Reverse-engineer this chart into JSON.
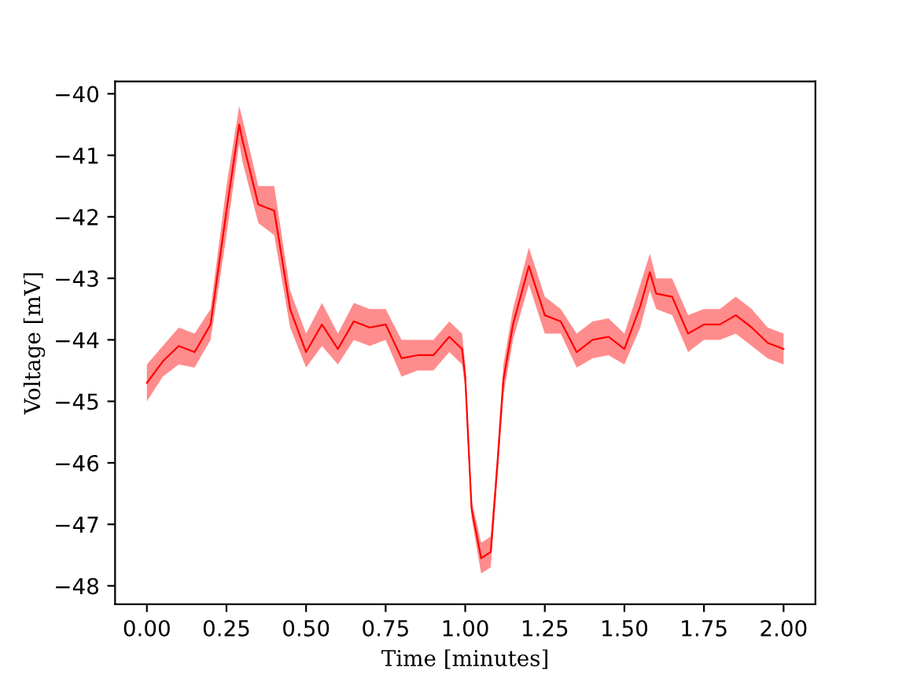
{
  "chart_data": {
    "type": "line",
    "xlabel": "Time [minutes]",
    "ylabel": "Voltage [mV]",
    "xlim": [
      -0.1,
      2.1
    ],
    "xticks": [
      {
        "value": 0,
        "label": "0.00"
      },
      {
        "value": 0.25,
        "label": "0.25"
      },
      {
        "value": 0.5,
        "label": "0.50"
      },
      {
        "value": 0.75,
        "label": "0.75"
      },
      {
        "value": 1,
        "label": "1.00"
      },
      {
        "value": 1.25,
        "label": "1.25"
      },
      {
        "value": 1.5,
        "label": "1.50"
      },
      {
        "value": 1.75,
        "label": "1.75"
      },
      {
        "value": 2,
        "label": "2.00"
      }
    ],
    "ylim": [
      -48.3,
      -39.8
    ],
    "yticks": [
      {
        "value": -48,
        "label": "−48"
      },
      {
        "value": -47,
        "label": "−47"
      },
      {
        "value": -46,
        "label": "−46"
      },
      {
        "value": -45,
        "label": "−45"
      },
      {
        "value": -44,
        "label": "−44"
      },
      {
        "value": -43,
        "label": "−43"
      },
      {
        "value": -42,
        "label": "−42"
      },
      {
        "value": -41,
        "label": "−41"
      },
      {
        "value": -40,
        "label": "−40"
      }
    ],
    "grid": false,
    "series": [
      {
        "color": "#ff0000",
        "x": [
          0,
          0.05,
          0.1,
          0.15,
          0.2,
          0.25,
          0.29,
          0.3,
          0.35,
          0.4,
          0.45,
          0.5,
          0.55,
          0.6,
          0.65,
          0.7,
          0.75,
          0.8,
          0.85,
          0.9,
          0.95,
          0.99,
          1.0,
          1.02,
          1.05,
          1.08,
          1.1,
          1.12,
          1.15,
          1.2,
          1.25,
          1.3,
          1.35,
          1.4,
          1.45,
          1.5,
          1.55,
          1.58,
          1.6,
          1.65,
          1.7,
          1.75,
          1.8,
          1.85,
          1.9,
          1.95,
          2.0
        ],
        "values": [
          -44.7,
          -44.35,
          -44.1,
          -44.2,
          -43.75,
          -41.9,
          -40.5,
          -40.75,
          -41.8,
          -41.9,
          -43.5,
          -44.2,
          -43.75,
          -44.15,
          -43.7,
          -43.8,
          -43.75,
          -44.3,
          -44.25,
          -44.25,
          -43.95,
          -44.15,
          -44.6,
          -46.75,
          -47.55,
          -47.45,
          -46.1,
          -44.65,
          -43.75,
          -42.8,
          -43.6,
          -43.7,
          -44.2,
          -44.0,
          -43.95,
          -44.15,
          -43.45,
          -42.9,
          -43.25,
          -43.3,
          -43.9,
          -43.75,
          -43.75,
          -43.6,
          -43.8,
          -44.05,
          -44.15
        ],
        "lower": [
          -45.0,
          -44.6,
          -44.4,
          -44.45,
          -44.0,
          -42.3,
          -40.8,
          -41.1,
          -42.1,
          -42.3,
          -43.8,
          -44.45,
          -44.1,
          -44.4,
          -44.0,
          -44.1,
          -44.0,
          -44.6,
          -44.5,
          -44.5,
          -44.2,
          -44.4,
          -44.8,
          -46.9,
          -47.8,
          -47.7,
          -46.3,
          -44.9,
          -44.0,
          -43.1,
          -43.9,
          -43.9,
          -44.45,
          -44.3,
          -44.25,
          -44.4,
          -43.8,
          -43.2,
          -43.5,
          -43.6,
          -44.2,
          -44.0,
          -44.0,
          -43.9,
          -44.1,
          -44.3,
          -44.4
        ],
        "upper": [
          -44.4,
          -44.1,
          -43.8,
          -43.9,
          -43.5,
          -41.5,
          -40.2,
          -40.4,
          -41.5,
          -41.5,
          -43.2,
          -43.9,
          -43.4,
          -43.9,
          -43.4,
          -43.5,
          -43.5,
          -44.0,
          -44.0,
          -44.0,
          -43.7,
          -43.9,
          -44.4,
          -46.6,
          -47.3,
          -47.2,
          -45.9,
          -44.4,
          -43.5,
          -42.5,
          -43.3,
          -43.5,
          -43.9,
          -43.7,
          -43.65,
          -43.9,
          -43.1,
          -42.6,
          -43.0,
          -43.0,
          -43.6,
          -43.5,
          -43.5,
          -43.3,
          -43.5,
          -43.8,
          -43.9
        ]
      }
    ]
  }
}
